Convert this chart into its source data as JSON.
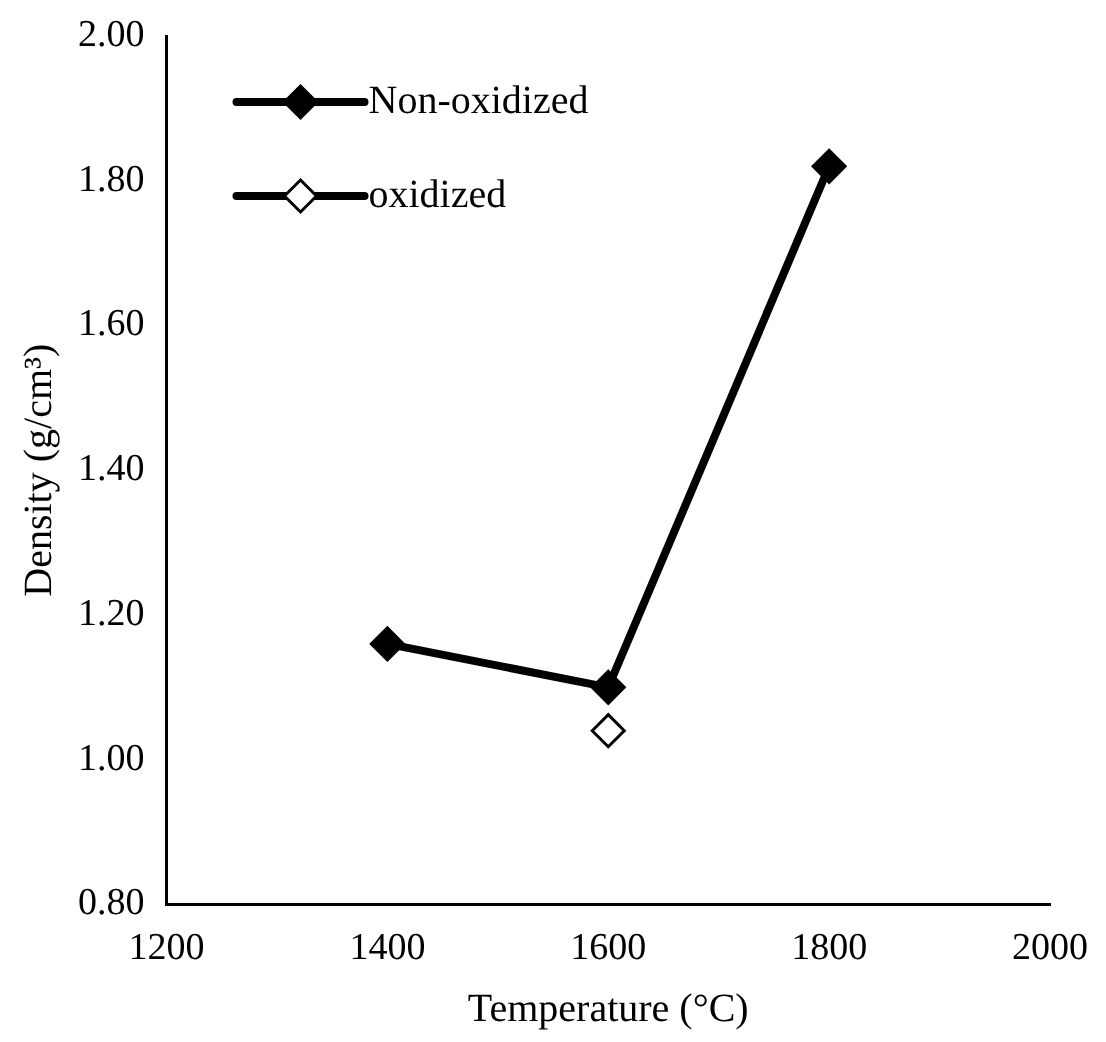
{
  "chart_data": {
    "type": "line",
    "xlabel": "Temperature (°C)",
    "ylabel": "Density (g/cm³)",
    "x": [
      1400,
      1600,
      1800
    ],
    "series": [
      {
        "name": "Non-oxidized",
        "color": "#000000",
        "values": [
          1.16,
          1.1,
          1.82
        ]
      },
      {
        "name": "oxidized",
        "color": "#000000",
        "type": "scatter",
        "x": [
          1600
        ],
        "values": [
          1.04
        ]
      }
    ],
    "xlim": [
      1200,
      2000
    ],
    "xticks": [
      1200,
      1400,
      1600,
      1800,
      2000
    ],
    "ylim": [
      0.8,
      2.0
    ],
    "yticks": [
      {
        "value": 0.8,
        "label": "0.80"
      },
      {
        "value": 1.0,
        "label": "1.00"
      },
      {
        "value": 1.2,
        "label": "1.20"
      },
      {
        "value": 1.4,
        "label": "1.40"
      },
      {
        "value": 1.6,
        "label": "1.60"
      },
      {
        "value": 1.8,
        "label": "1.80"
      },
      {
        "value": 2.0,
        "label": "2.00"
      }
    ],
    "grid": false,
    "legend": "top left",
    "marker": "diamond",
    "line_style": "solid"
  }
}
